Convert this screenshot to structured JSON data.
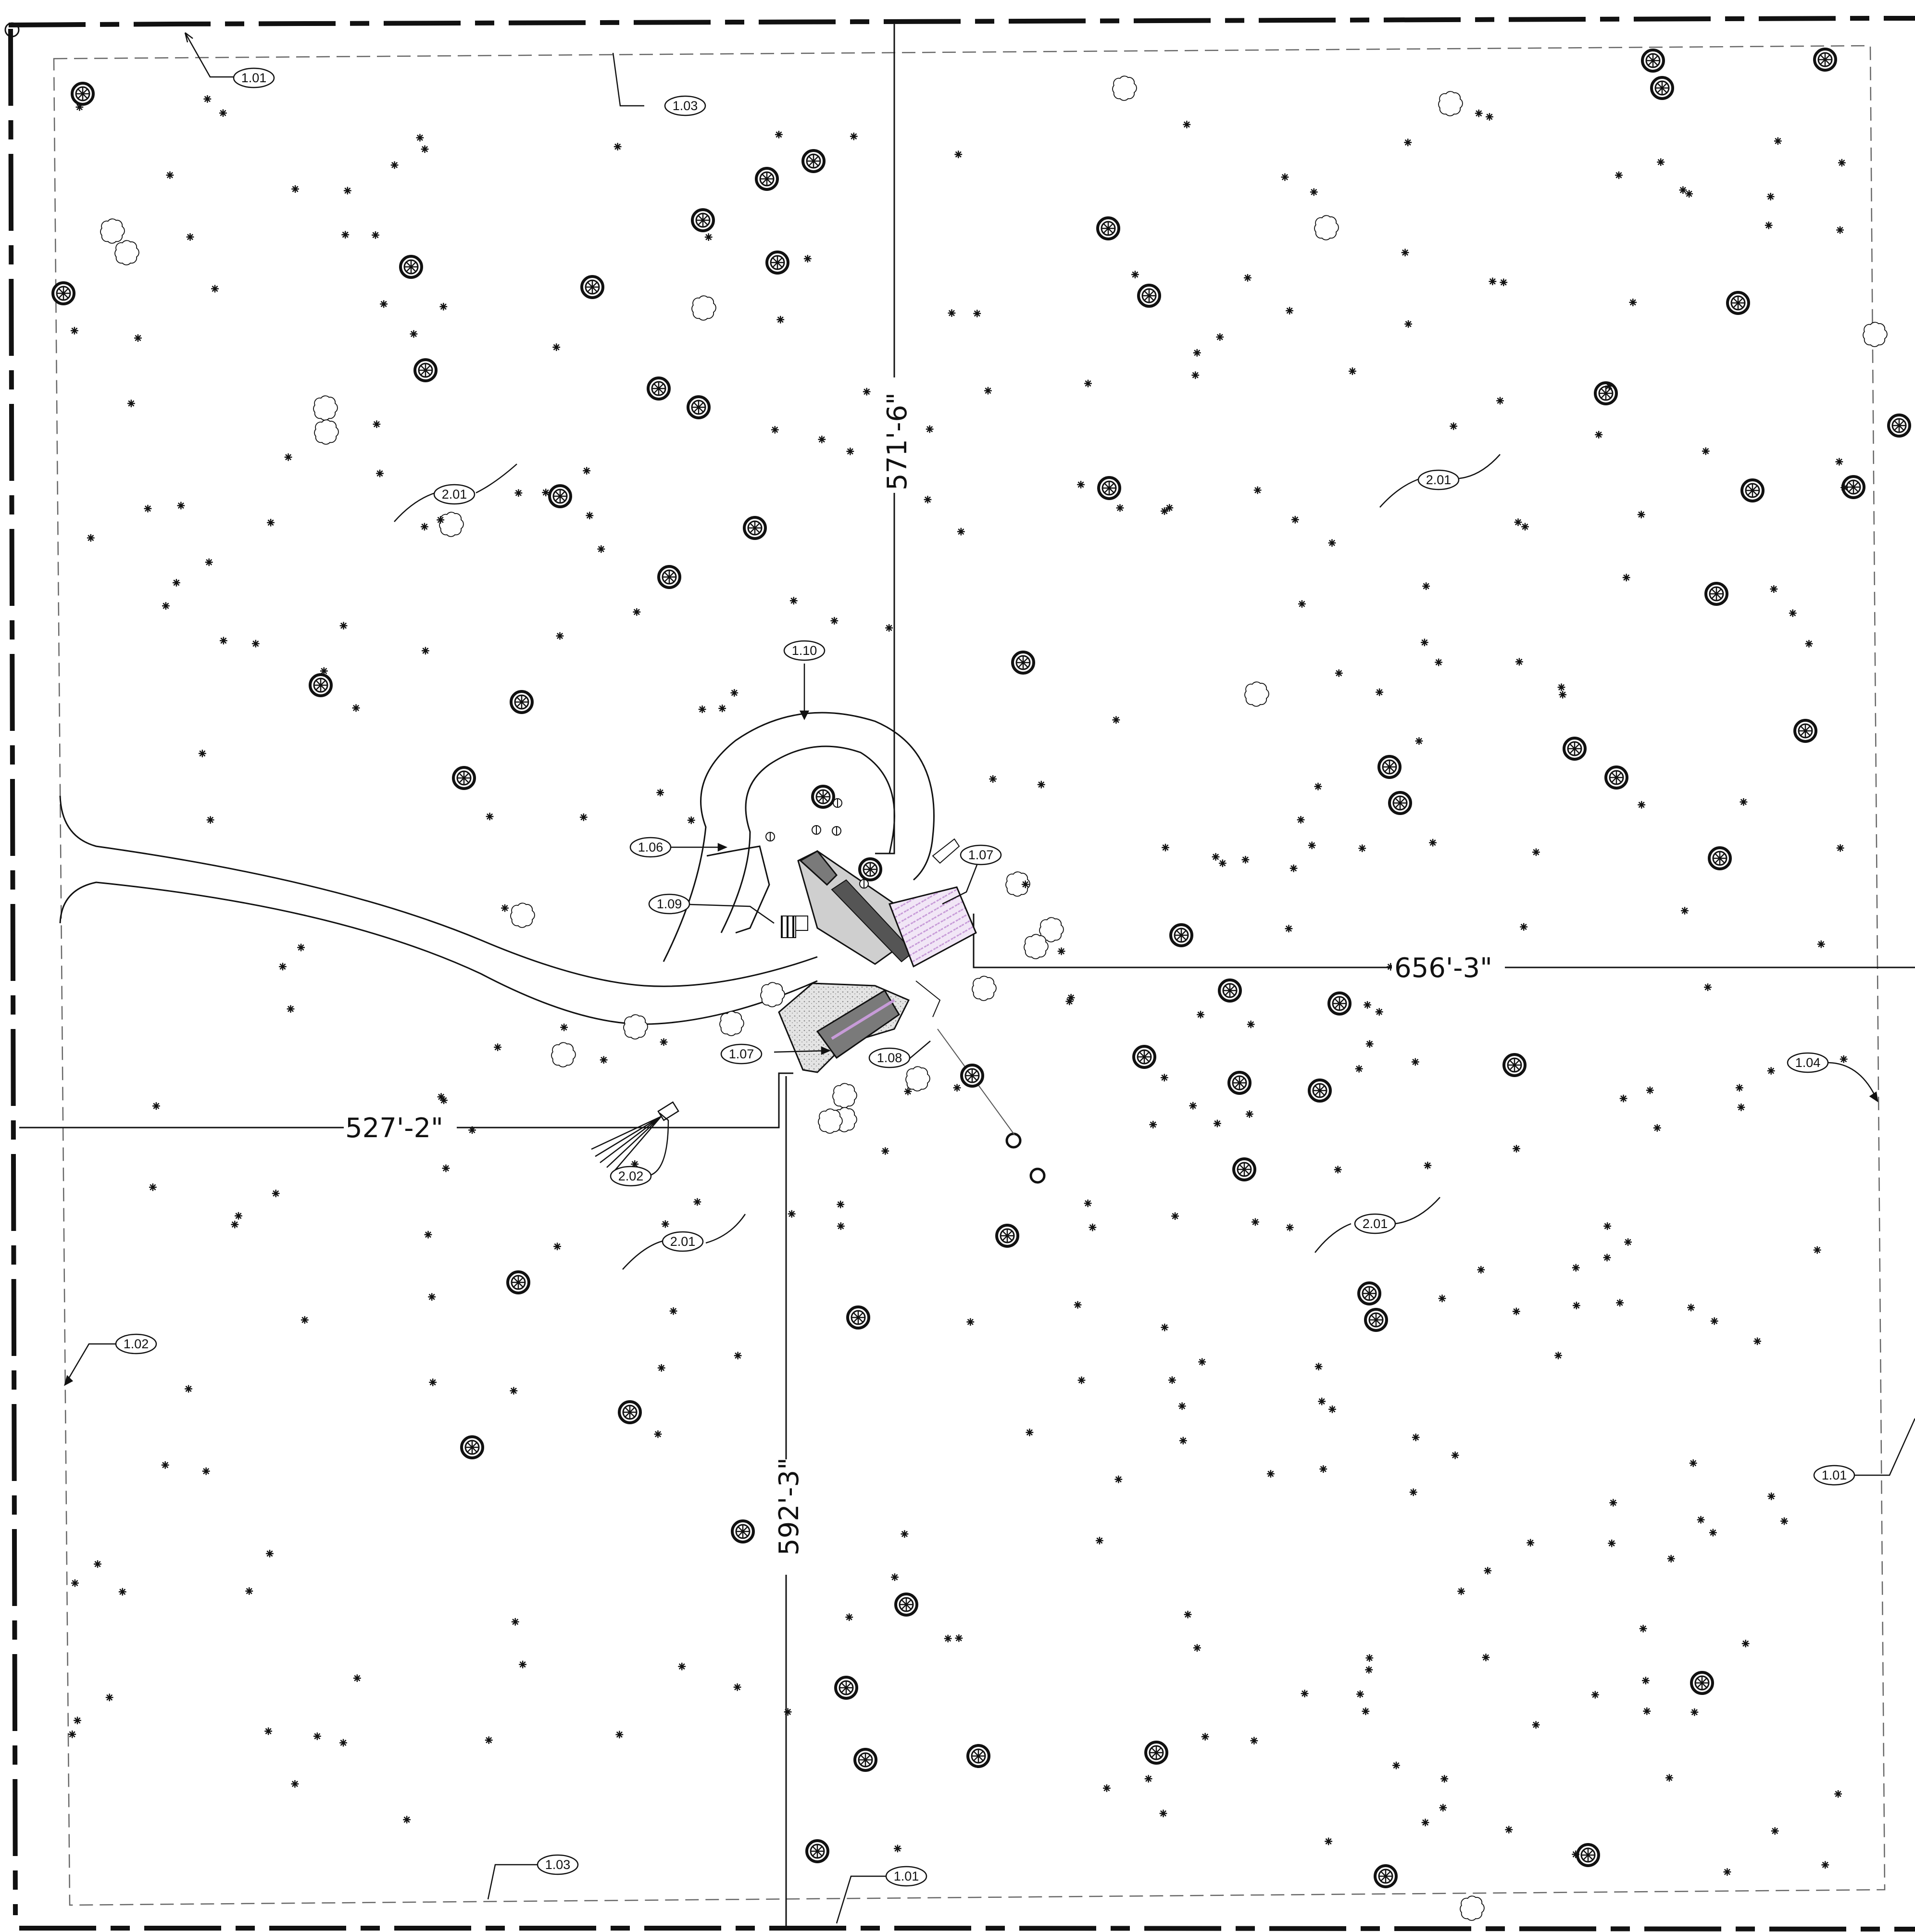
{
  "drawing": {
    "line_color": "#111111",
    "paver_color": "#c79bd8",
    "hardscape_color": "#cfcfcf",
    "building_color": "#7a7a7a"
  },
  "dimensions": {
    "north": "571'-6\"",
    "east": "656'-3\"",
    "west": "527'-2\"",
    "south": "592'-3\""
  },
  "keynotes": [
    {
      "id": "kn-101-top",
      "text": "1.01"
    },
    {
      "id": "kn-103-top",
      "text": "1.03"
    },
    {
      "id": "kn-201-nw",
      "text": "2.01"
    },
    {
      "id": "kn-201-ne",
      "text": "2.01"
    },
    {
      "id": "kn-110",
      "text": "1.10"
    },
    {
      "id": "kn-106",
      "text": "1.06"
    },
    {
      "id": "kn-107-a",
      "text": "1.07"
    },
    {
      "id": "kn-109",
      "text": "1.09"
    },
    {
      "id": "kn-107-b",
      "text": "1.07"
    },
    {
      "id": "kn-108",
      "text": "1.08"
    },
    {
      "id": "kn-104",
      "text": "1.04"
    },
    {
      "id": "kn-202",
      "text": "2.02"
    },
    {
      "id": "kn-201-sw",
      "text": "2.01"
    },
    {
      "id": "kn-201-se",
      "text": "2.01"
    },
    {
      "id": "kn-102",
      "text": "1.02"
    },
    {
      "id": "kn-101-right",
      "text": "1.01"
    },
    {
      "id": "kn-103-bottom",
      "text": "1.03"
    },
    {
      "id": "kn-101-bottom",
      "text": "1.01"
    }
  ],
  "symbols": {
    "shrub": "shrub-symbol",
    "deciduous_tree": "deciduous-tree-symbol",
    "evergreen_tree": "evergreen-tree-symbol",
    "light_fixture": "light-fixture-symbol"
  }
}
